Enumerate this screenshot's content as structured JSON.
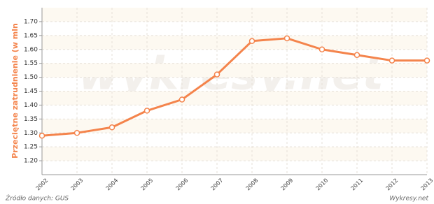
{
  "chart_data": {
    "type": "line",
    "y_label": "Przeciętne zatrudnienie (w mln",
    "watermark": "wykresy.net",
    "source": "Źródło danych: GUS",
    "credit": "Wykresy.net",
    "categories": [
      "2002",
      "2003",
      "2004",
      "2005",
      "2006",
      "2007",
      "2008",
      "2009",
      "2010",
      "2011",
      "2012",
      "2013"
    ],
    "series": [
      {
        "name": "Przeciętne zatrudnienie",
        "color": "#f4844c",
        "values": [
          1.29,
          1.3,
          1.32,
          1.38,
          1.42,
          1.51,
          1.63,
          1.64,
          1.6,
          1.58,
          1.56,
          1.56
        ]
      }
    ],
    "ylim": [
      1.15,
      1.75
    ],
    "yticks": [
      {
        "value": 1.2,
        "label": "1.20"
      },
      {
        "value": 1.25,
        "label": "1.25"
      },
      {
        "value": 1.3,
        "label": "1.30"
      },
      {
        "value": 1.35,
        "label": "1.35"
      },
      {
        "value": 1.4,
        "label": "1.40"
      },
      {
        "value": 1.45,
        "label": "1.45"
      },
      {
        "value": 1.5,
        "label": "1.50"
      },
      {
        "value": 1.55,
        "label": "1.55"
      },
      {
        "value": 1.6,
        "label": "1.60"
      },
      {
        "value": 1.65,
        "label": "1.65"
      },
      {
        "value": 1.7,
        "label": "1.70"
      }
    ],
    "grid": true
  }
}
